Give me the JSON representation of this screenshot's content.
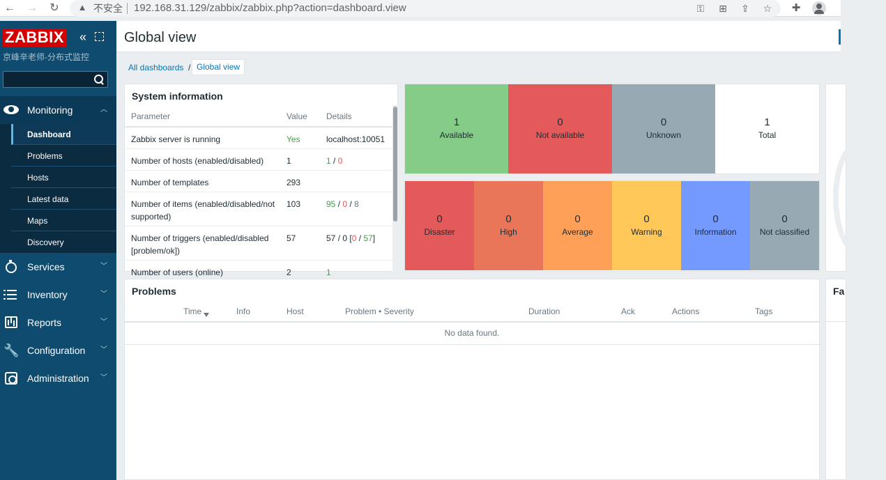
{
  "browser": {
    "security_warning": "不安全",
    "url": "192.168.31.129/zabbix/zabbix.php?action=dashboard.view"
  },
  "sidebar": {
    "logo": "ZABBIX",
    "subtitle": "京峰辛老师-分布式监控",
    "search_placeholder": "",
    "sections": [
      {
        "label": "Monitoring",
        "icon": "eye-icon",
        "expanded": true
      },
      {
        "label": "Services",
        "icon": "timer-icon"
      },
      {
        "label": "Inventory",
        "icon": "list-icon"
      },
      {
        "label": "Reports",
        "icon": "chart-icon"
      },
      {
        "label": "Configuration",
        "icon": "wrench-icon"
      },
      {
        "label": "Administration",
        "icon": "gear-icon"
      }
    ],
    "monitoring_items": [
      "Dashboard",
      "Problems",
      "Hosts",
      "Latest data",
      "Maps",
      "Discovery"
    ],
    "active_item": "Dashboard"
  },
  "header": {
    "title": "Global view"
  },
  "breadcrumb": {
    "parent": "All dashboards",
    "separator": "/",
    "current": "Global view"
  },
  "system_info": {
    "title": "System information",
    "columns": [
      "Parameter",
      "Value",
      "Details"
    ],
    "rows": [
      {
        "param": "Zabbix server is running",
        "value": "Yes",
        "details": "localhost:10051"
      },
      {
        "param": "Number of hosts (enabled/disabled)",
        "value": "1",
        "d1": "1",
        "d2": "0"
      },
      {
        "param": "Number of templates",
        "value": "293"
      },
      {
        "param": "Number of items (enabled/disabled/not supported)",
        "value": "103",
        "d1": "95",
        "d2": "0",
        "d3": "8"
      },
      {
        "param": "Number of triggers (enabled/disabled [problem/ok])",
        "value": "57",
        "d1": "57",
        "d2": "0",
        "d3": "0",
        "d4": "57"
      },
      {
        "param": "Number of users (online)",
        "value": "2",
        "d1": "1"
      }
    ]
  },
  "host_availability": [
    {
      "count": "1",
      "label": "Available",
      "color": "#86cc89"
    },
    {
      "count": "0",
      "label": "Not available",
      "color": "#e45959"
    },
    {
      "count": "0",
      "label": "Unknown",
      "color": "#97aab3"
    },
    {
      "count": "1",
      "label": "Total",
      "color": "#ffffff"
    }
  ],
  "problems_by_severity": [
    {
      "count": "0",
      "label": "Disaster",
      "color": "#e45959"
    },
    {
      "count": "0",
      "label": "High",
      "color": "#e97659"
    },
    {
      "count": "0",
      "label": "Average",
      "color": "#ffa059"
    },
    {
      "count": "0",
      "label": "Warning",
      "color": "#ffc859"
    },
    {
      "count": "0",
      "label": "Information",
      "color": "#7499ff"
    },
    {
      "count": "0",
      "label": "Not classified",
      "color": "#97aab3"
    }
  ],
  "problems": {
    "title": "Problems",
    "columns": [
      "Time",
      "Info",
      "Host",
      "Problem • Severity",
      "Duration",
      "Ack",
      "Actions",
      "Tags"
    ],
    "empty_text": "No data found."
  },
  "right_widget": {
    "title_partial": "Fa"
  }
}
